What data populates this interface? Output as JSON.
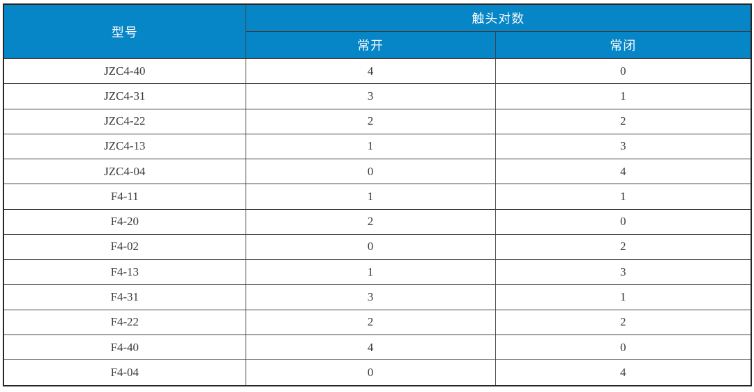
{
  "colors": {
    "header_bg": "#0685c7",
    "header_text": "#f7fbfd",
    "border_inner": "#3f3f3f",
    "border_outer": "#262626",
    "cell_text": "#3a3a3a",
    "page_bg": "#ffffff"
  },
  "table": {
    "header": {
      "model": "型号",
      "contact_pairs": "触头对数",
      "normally_open": "常开",
      "normally_closed": "常闭"
    },
    "rows": [
      {
        "model": "JZC4-40",
        "no": "4",
        "nc": "0"
      },
      {
        "model": "JZC4-31",
        "no": "3",
        "nc": "1"
      },
      {
        "model": "JZC4-22",
        "no": "2",
        "nc": "2"
      },
      {
        "model": "JZC4-13",
        "no": "1",
        "nc": "3"
      },
      {
        "model": "JZC4-04",
        "no": "0",
        "nc": "4"
      },
      {
        "model": "F4-11",
        "no": "1",
        "nc": "1"
      },
      {
        "model": "F4-20",
        "no": "2",
        "nc": "0"
      },
      {
        "model": "F4-02",
        "no": "0",
        "nc": "2"
      },
      {
        "model": "F4-13",
        "no": "1",
        "nc": "3"
      },
      {
        "model": "F4-31",
        "no": "3",
        "nc": "1"
      },
      {
        "model": "F4-22",
        "no": "2",
        "nc": "2"
      },
      {
        "model": "F4-40",
        "no": "4",
        "nc": "0"
      },
      {
        "model": "F4-04",
        "no": "0",
        "nc": "4"
      }
    ]
  },
  "chart_data": {
    "type": "table",
    "title": "",
    "columns": [
      "型号",
      "触头对数-常开",
      "触头对数-常闭"
    ],
    "rows": [
      [
        "JZC4-40",
        4,
        0
      ],
      [
        "JZC4-31",
        3,
        1
      ],
      [
        "JZC4-22",
        2,
        2
      ],
      [
        "JZC4-13",
        1,
        3
      ],
      [
        "JZC4-04",
        0,
        4
      ],
      [
        "F4-11",
        1,
        1
      ],
      [
        "F4-20",
        2,
        0
      ],
      [
        "F4-02",
        0,
        2
      ],
      [
        "F4-13",
        1,
        3
      ],
      [
        "F4-31",
        3,
        1
      ],
      [
        "F4-22",
        2,
        2
      ],
      [
        "F4-40",
        4,
        0
      ],
      [
        "F4-04",
        0,
        4
      ]
    ]
  }
}
